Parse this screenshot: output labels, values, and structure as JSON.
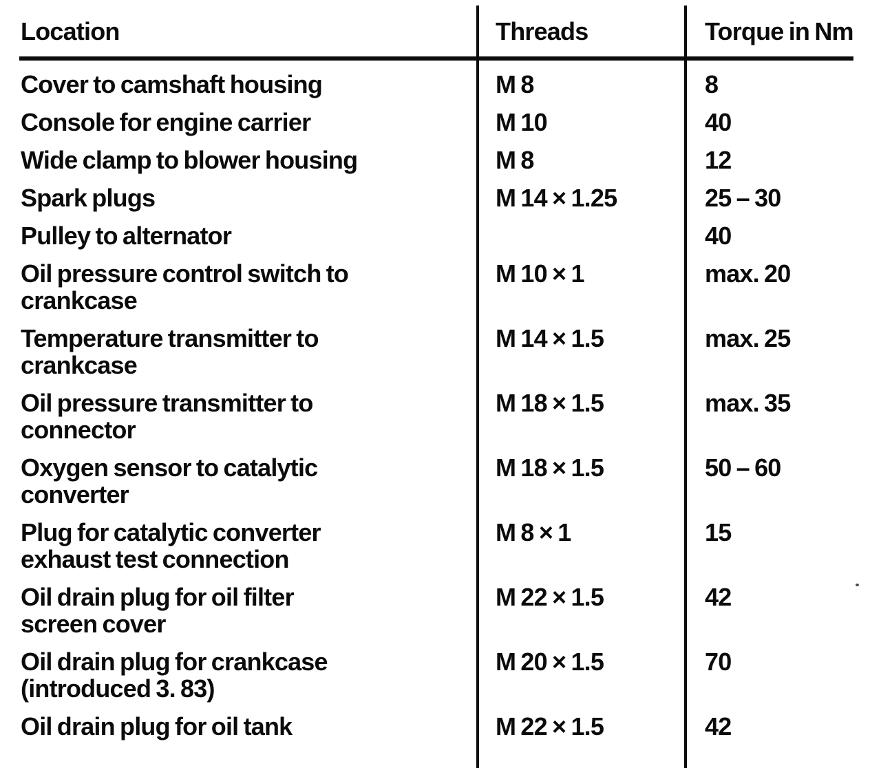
{
  "header": {
    "location": "Location",
    "threads": "Threads",
    "torque": "Torque in Nm"
  },
  "rows": [
    {
      "location": "Cover to camshaft housing",
      "threads": "M 8",
      "torque": "8"
    },
    {
      "location": "Console for engine carrier",
      "threads": "M 10",
      "torque": "40"
    },
    {
      "location": "Wide clamp to blower housing",
      "threads": "M 8",
      "torque": "12"
    },
    {
      "location": "Spark plugs",
      "threads": "M 14 × 1.25",
      "torque": "25 – 30"
    },
    {
      "location": "Pulley to alternator",
      "threads": "",
      "torque": "40"
    },
    {
      "location": "Oil pressure control switch to\ncrankcase",
      "threads": "M 10 × 1",
      "torque": "max. 20"
    },
    {
      "location": "Temperature transmitter to\ncrankcase",
      "threads": "M 14 × 1.5",
      "torque": "max. 25"
    },
    {
      "location": "Oil pressure transmitter to\nconnector",
      "threads": "M 18 × 1.5",
      "torque": "max. 35"
    },
    {
      "location": "Oxygen sensor to catalytic\nconverter",
      "threads": "M 18 × 1.5",
      "torque": "50 – 60"
    },
    {
      "location": "Plug for catalytic converter\nexhaust test connection",
      "threads": "M 8 × 1",
      "torque": "15"
    },
    {
      "location": "Oil drain plug for oil filter\nscreen cover",
      "threads": "M 22 × 1.5",
      "torque": "42"
    },
    {
      "location": "Oil drain plug for crankcase\n(introduced 3. 83)",
      "threads": "M 20 × 1.5",
      "torque": "70"
    },
    {
      "location": "Oil drain plug for oil tank",
      "threads": "M 22 × 1.5",
      "torque": "42"
    }
  ],
  "colors": {
    "ink": "#0c0c0c",
    "paper": "#ffffff"
  }
}
